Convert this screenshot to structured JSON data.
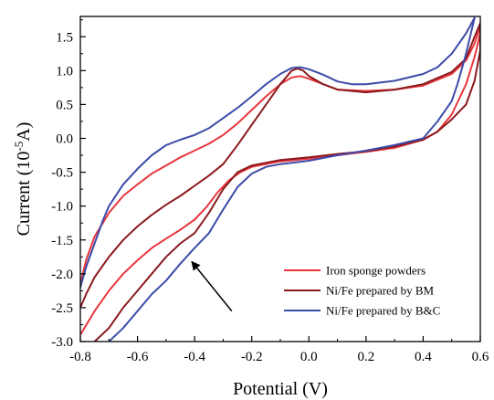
{
  "chart_data": {
    "type": "line",
    "title": "",
    "xlabel": "Potential (V)",
    "ylabel_main": "Current (10",
    "ylabel_sup": "-5",
    "ylabel_tail": "A)",
    "xlim": [
      -0.8,
      0.6
    ],
    "ylim": [
      -3.0,
      1.8
    ],
    "xticks": [
      -0.8,
      -0.6,
      -0.4,
      -0.2,
      0.0,
      0.2,
      0.4,
      0.6
    ],
    "yticks": [
      -3.0,
      -2.5,
      -2.0,
      -1.5,
      -1.0,
      -0.5,
      0.0,
      0.5,
      1.0,
      1.5
    ],
    "grid": false,
    "legend_position": "bottom-right",
    "annotation": {
      "type": "arrow",
      "from": [
        -0.27,
        -2.55
      ],
      "to": [
        -0.41,
        -1.82
      ]
    },
    "series": [
      {
        "name": "Iron sponge powders",
        "color": "#e8363c",
        "points": [
          [
            -0.8,
            -2.9
          ],
          [
            -0.75,
            -2.55
          ],
          [
            -0.7,
            -2.25
          ],
          [
            -0.65,
            -2.0
          ],
          [
            -0.6,
            -1.8
          ],
          [
            -0.55,
            -1.62
          ],
          [
            -0.5,
            -1.48
          ],
          [
            -0.45,
            -1.35
          ],
          [
            -0.4,
            -1.2
          ],
          [
            -0.36,
            -1.02
          ],
          [
            -0.32,
            -0.8
          ],
          [
            -0.28,
            -0.62
          ],
          [
            -0.24,
            -0.5
          ],
          [
            -0.2,
            -0.42
          ],
          [
            -0.1,
            -0.34
          ],
          [
            0.0,
            -0.3
          ],
          [
            0.1,
            -0.25
          ],
          [
            0.2,
            -0.2
          ],
          [
            0.3,
            -0.14
          ],
          [
            0.4,
            -0.02
          ],
          [
            0.45,
            0.1
          ],
          [
            0.5,
            0.35
          ],
          [
            0.55,
            0.8
          ],
          [
            0.58,
            1.2
          ],
          [
            0.6,
            1.55
          ],
          [
            0.6,
            1.65
          ],
          [
            0.58,
            1.4
          ],
          [
            0.55,
            1.15
          ],
          [
            0.5,
            0.95
          ],
          [
            0.4,
            0.78
          ],
          [
            0.3,
            0.72
          ],
          [
            0.2,
            0.7
          ],
          [
            0.1,
            0.72
          ],
          [
            0.05,
            0.8
          ],
          [
            0.0,
            0.88
          ],
          [
            -0.03,
            0.92
          ],
          [
            -0.06,
            0.9
          ],
          [
            -0.1,
            0.8
          ],
          [
            -0.15,
            0.62
          ],
          [
            -0.2,
            0.42
          ],
          [
            -0.25,
            0.22
          ],
          [
            -0.3,
            0.05
          ],
          [
            -0.35,
            -0.08
          ],
          [
            -0.4,
            -0.18
          ],
          [
            -0.45,
            -0.28
          ],
          [
            -0.5,
            -0.4
          ],
          [
            -0.55,
            -0.52
          ],
          [
            -0.6,
            -0.68
          ],
          [
            -0.65,
            -0.85
          ],
          [
            -0.7,
            -1.1
          ],
          [
            -0.75,
            -1.45
          ],
          [
            -0.78,
            -1.8
          ],
          [
            -0.8,
            -2.15
          ]
        ]
      },
      {
        "name": "Ni/Fe prepared by BM",
        "color": "#8b1a1f",
        "points": [
          [
            -0.8,
            -2.5
          ],
          [
            -0.78,
            -2.3
          ],
          [
            -0.75,
            -2.05
          ],
          [
            -0.7,
            -1.75
          ],
          [
            -0.65,
            -1.5
          ],
          [
            -0.6,
            -1.3
          ],
          [
            -0.55,
            -1.13
          ],
          [
            -0.5,
            -0.98
          ],
          [
            -0.45,
            -0.85
          ],
          [
            -0.4,
            -0.7
          ],
          [
            -0.35,
            -0.55
          ],
          [
            -0.3,
            -0.38
          ],
          [
            -0.25,
            -0.1
          ],
          [
            -0.2,
            0.2
          ],
          [
            -0.15,
            0.5
          ],
          [
            -0.1,
            0.8
          ],
          [
            -0.06,
            1.0
          ],
          [
            -0.04,
            1.03
          ],
          [
            -0.02,
            1.0
          ],
          [
            0.0,
            0.92
          ],
          [
            0.05,
            0.8
          ],
          [
            0.1,
            0.72
          ],
          [
            0.2,
            0.68
          ],
          [
            0.3,
            0.72
          ],
          [
            0.4,
            0.8
          ],
          [
            0.5,
            0.98
          ],
          [
            0.55,
            1.18
          ],
          [
            0.58,
            1.5
          ],
          [
            0.6,
            1.7
          ],
          [
            0.6,
            1.3
          ],
          [
            0.58,
            0.85
          ],
          [
            0.55,
            0.5
          ],
          [
            0.5,
            0.28
          ],
          [
            0.45,
            0.1
          ],
          [
            0.4,
            -0.02
          ],
          [
            0.3,
            -0.12
          ],
          [
            0.2,
            -0.19
          ],
          [
            0.1,
            -0.23
          ],
          [
            0.0,
            -0.28
          ],
          [
            -0.1,
            -0.32
          ],
          [
            -0.2,
            -0.4
          ],
          [
            -0.25,
            -0.5
          ],
          [
            -0.3,
            -0.75
          ],
          [
            -0.35,
            -1.1
          ],
          [
            -0.4,
            -1.4
          ],
          [
            -0.45,
            -1.55
          ],
          [
            -0.5,
            -1.75
          ],
          [
            -0.55,
            -2.0
          ],
          [
            -0.6,
            -2.25
          ],
          [
            -0.65,
            -2.5
          ],
          [
            -0.7,
            -2.8
          ],
          [
            -0.75,
            -3.0
          ]
        ]
      },
      {
        "name": "Ni/Fe prepared by B&C",
        "color": "#3d4ba8",
        "points": [
          [
            -0.8,
            -2.2
          ],
          [
            -0.78,
            -1.9
          ],
          [
            -0.75,
            -1.55
          ],
          [
            -0.72,
            -1.2
          ],
          [
            -0.7,
            -1.0
          ],
          [
            -0.65,
            -0.68
          ],
          [
            -0.6,
            -0.45
          ],
          [
            -0.55,
            -0.25
          ],
          [
            -0.5,
            -0.1
          ],
          [
            -0.45,
            -0.02
          ],
          [
            -0.4,
            0.05
          ],
          [
            -0.35,
            0.15
          ],
          [
            -0.3,
            0.3
          ],
          [
            -0.25,
            0.45
          ],
          [
            -0.2,
            0.62
          ],
          [
            -0.15,
            0.8
          ],
          [
            -0.1,
            0.95
          ],
          [
            -0.06,
            1.04
          ],
          [
            -0.03,
            1.05
          ],
          [
            0.0,
            1.02
          ],
          [
            0.05,
            0.94
          ],
          [
            0.1,
            0.84
          ],
          [
            0.15,
            0.8
          ],
          [
            0.2,
            0.8
          ],
          [
            0.3,
            0.85
          ],
          [
            0.4,
            0.95
          ],
          [
            0.45,
            1.05
          ],
          [
            0.5,
            1.25
          ],
          [
            0.55,
            1.55
          ],
          [
            0.58,
            1.78
          ],
          [
            0.55,
            1.25
          ],
          [
            0.52,
            0.8
          ],
          [
            0.5,
            0.55
          ],
          [
            0.45,
            0.25
          ],
          [
            0.4,
            0.0
          ],
          [
            0.3,
            -0.1
          ],
          [
            0.2,
            -0.18
          ],
          [
            0.1,
            -0.25
          ],
          [
            0.0,
            -0.33
          ],
          [
            -0.1,
            -0.38
          ],
          [
            -0.15,
            -0.42
          ],
          [
            -0.2,
            -0.52
          ],
          [
            -0.25,
            -0.72
          ],
          [
            -0.3,
            -1.05
          ],
          [
            -0.35,
            -1.4
          ],
          [
            -0.4,
            -1.62
          ],
          [
            -0.45,
            -1.85
          ],
          [
            -0.5,
            -2.1
          ],
          [
            -0.55,
            -2.3
          ],
          [
            -0.6,
            -2.55
          ],
          [
            -0.65,
            -2.8
          ],
          [
            -0.7,
            -3.0
          ]
        ]
      }
    ]
  }
}
